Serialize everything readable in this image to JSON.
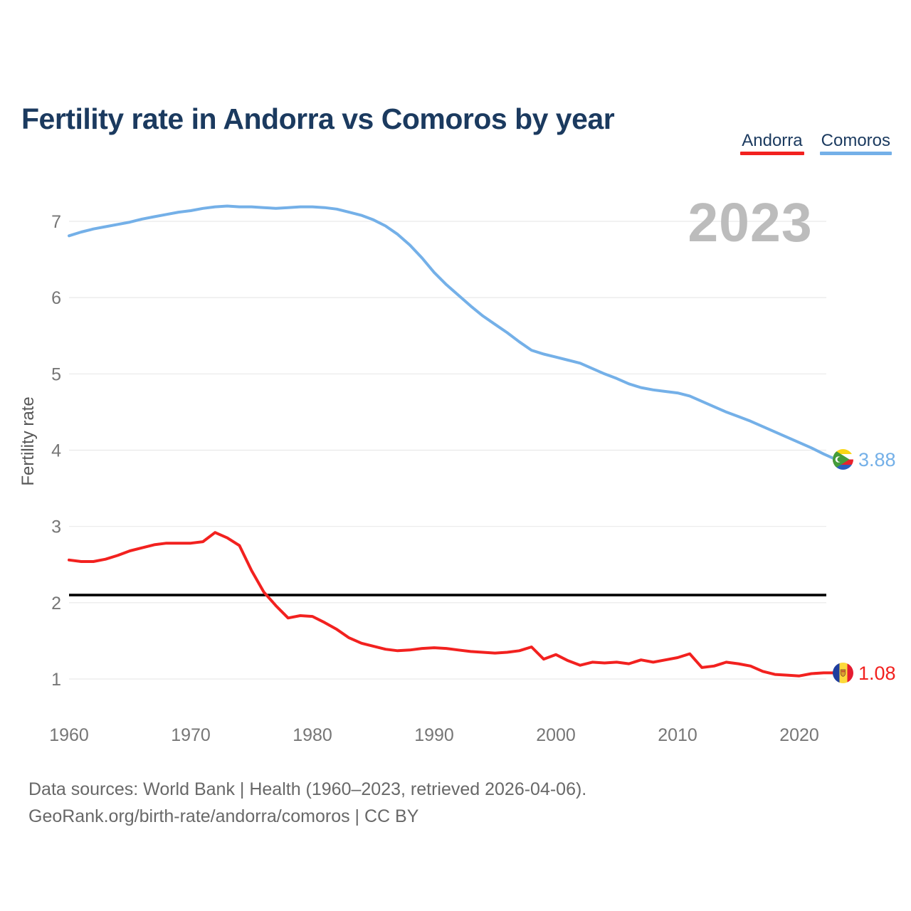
{
  "header": {
    "title": "Fertility rate in Andorra vs Comoros by year"
  },
  "legend": [
    {
      "label": "Andorra",
      "color": "#f2211f"
    },
    {
      "label": "Comoros",
      "color": "#74b0e8"
    }
  ],
  "watermark": {
    "text": "2023"
  },
  "y_axis": {
    "label": "Fertility rate",
    "ticks": [
      1,
      2,
      3,
      4,
      5,
      6,
      7
    ]
  },
  "x_axis": {
    "ticks": [
      1960,
      1970,
      1980,
      1990,
      2000,
      2010,
      2020
    ]
  },
  "reference_line": {
    "value": 2.1,
    "color": "#000000"
  },
  "end_labels": [
    {
      "series": "Comoros",
      "value": "3.88",
      "color": "#74b0e8",
      "flag": "comoros-flag"
    },
    {
      "series": "Andorra",
      "value": "1.08",
      "color": "#f2211f",
      "flag": "andorra-flag"
    }
  ],
  "footer": {
    "line1": "Data sources: World Bank | Health (1960–2023, retrieved 2026-04-06).",
    "line2": "GeoRank.org/birth-rate/andorra/comoros | CC BY"
  },
  "chart_data": {
    "type": "line",
    "title": "Fertility rate in Andorra vs Comoros by year",
    "xlabel": "",
    "ylabel": "Fertility rate",
    "xlim": [
      1960,
      2023
    ],
    "ylim": [
      1,
      7.3
    ],
    "grid": "horizontal",
    "legend_position": "top-right",
    "annotations": {
      "watermark_year": "2023",
      "replacement_level_line": 2.1
    },
    "x": [
      1960,
      1961,
      1962,
      1963,
      1964,
      1965,
      1966,
      1967,
      1968,
      1969,
      1970,
      1971,
      1972,
      1973,
      1974,
      1975,
      1976,
      1977,
      1978,
      1979,
      1980,
      1981,
      1982,
      1983,
      1984,
      1985,
      1986,
      1987,
      1988,
      1989,
      1990,
      1991,
      1992,
      1993,
      1994,
      1995,
      1996,
      1997,
      1998,
      1999,
      2000,
      2001,
      2002,
      2003,
      2004,
      2005,
      2006,
      2007,
      2008,
      2009,
      2010,
      2011,
      2012,
      2013,
      2014,
      2015,
      2016,
      2017,
      2018,
      2019,
      2020,
      2021,
      2022,
      2023
    ],
    "series": [
      {
        "name": "Comoros",
        "color": "#74b0e8",
        "values": [
          6.81,
          6.86,
          6.9,
          6.93,
          6.96,
          6.99,
          7.03,
          7.06,
          7.09,
          7.12,
          7.14,
          7.17,
          7.19,
          7.2,
          7.19,
          7.19,
          7.18,
          7.17,
          7.18,
          7.19,
          7.19,
          7.18,
          7.16,
          7.12,
          7.08,
          7.02,
          6.94,
          6.83,
          6.69,
          6.52,
          6.33,
          6.17,
          6.03,
          5.89,
          5.76,
          5.65,
          5.54,
          5.42,
          5.31,
          5.26,
          5.22,
          5.18,
          5.14,
          5.07,
          5.0,
          4.94,
          4.87,
          4.82,
          4.79,
          4.77,
          4.75,
          4.71,
          4.64,
          4.57,
          4.5,
          4.44,
          4.38,
          4.31,
          4.24,
          4.17,
          4.1,
          4.03,
          3.95,
          3.88
        ]
      },
      {
        "name": "Andorra",
        "color": "#f2211f",
        "values": [
          2.56,
          2.54,
          2.54,
          2.57,
          2.62,
          2.68,
          2.72,
          2.76,
          2.78,
          2.78,
          2.78,
          2.8,
          2.92,
          2.85,
          2.75,
          2.42,
          2.14,
          1.96,
          1.8,
          1.83,
          1.82,
          1.74,
          1.65,
          1.54,
          1.47,
          1.43,
          1.39,
          1.37,
          1.38,
          1.4,
          1.41,
          1.4,
          1.38,
          1.36,
          1.35,
          1.34,
          1.35,
          1.37,
          1.42,
          1.26,
          1.32,
          1.24,
          1.18,
          1.22,
          1.21,
          1.22,
          1.2,
          1.25,
          1.22,
          1.25,
          1.28,
          1.33,
          1.15,
          1.17,
          1.22,
          1.2,
          1.17,
          1.1,
          1.06,
          1.05,
          1.04,
          1.07,
          1.08,
          1.08
        ]
      }
    ]
  }
}
